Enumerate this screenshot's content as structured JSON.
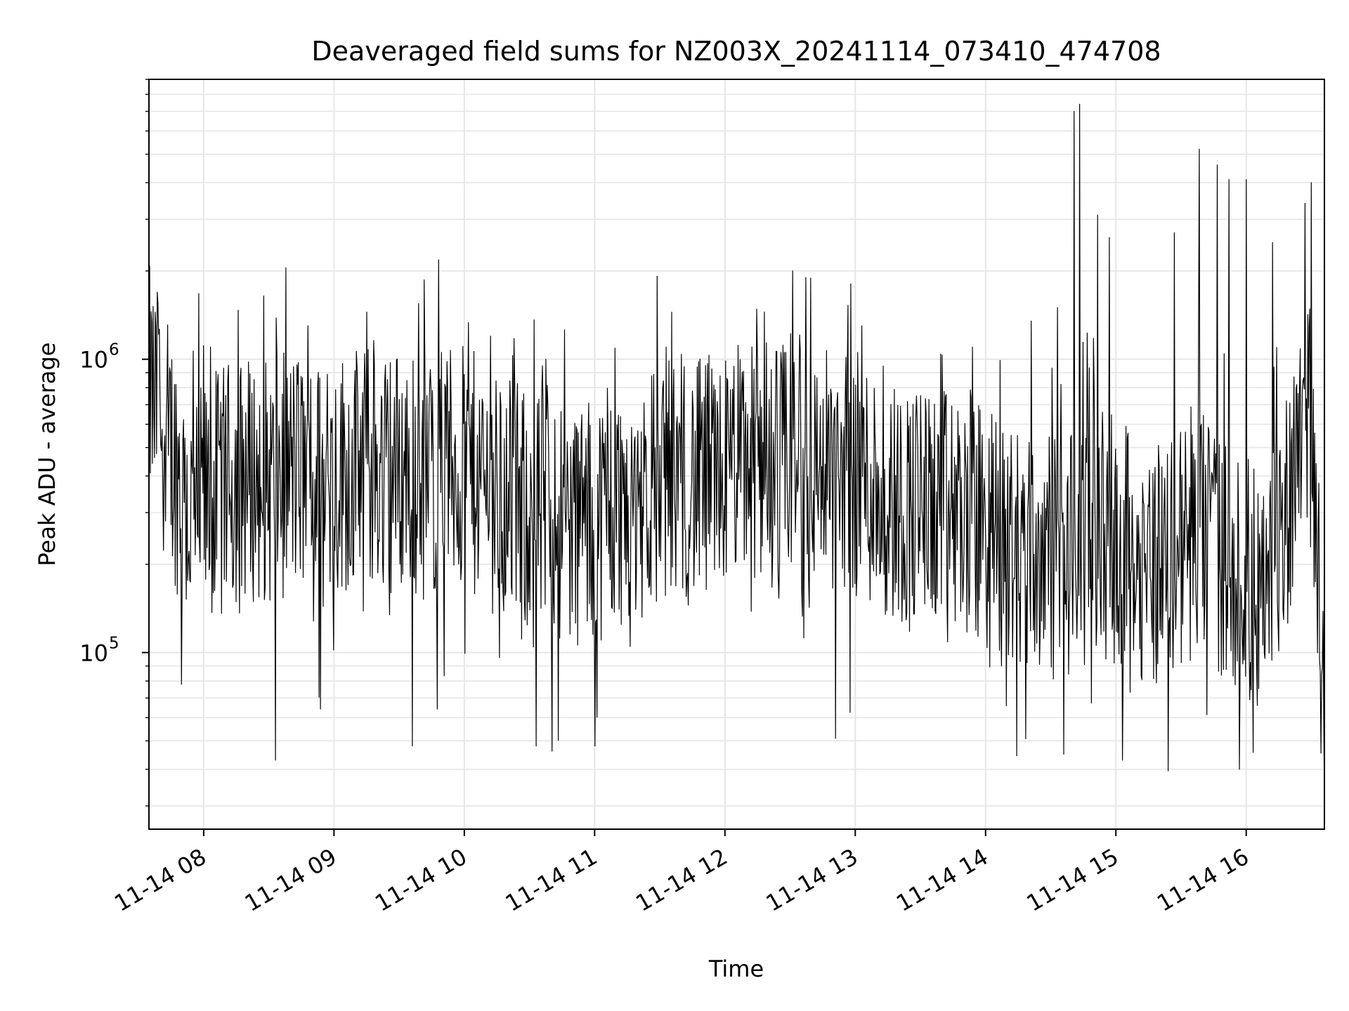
{
  "chart_data": {
    "type": "line",
    "title": "Deaveraged field sums for NZ003X_20241114_073410_474708",
    "xlabel": "Time",
    "ylabel": "Peak ADU - average",
    "x_tick_labels": [
      "11-14 08",
      "11-14 09",
      "11-14 10",
      "11-14 11",
      "11-14 12",
      "11-14 13",
      "11-14 14",
      "11-14 15",
      "11-14 16"
    ],
    "x_ticks_hours": [
      8,
      9,
      10,
      11,
      12,
      13,
      14,
      15,
      16
    ],
    "xlim_hours": [
      7.58,
      16.6
    ],
    "y_scale": "log",
    "ylim": [
      25000,
      9000000
    ],
    "y_tick_labels": [
      {
        "base": "10",
        "exp": "5",
        "value": 100000
      },
      {
        "base": "10",
        "exp": "6",
        "value": 1000000
      }
    ],
    "grid": true,
    "line_color": "#000000",
    "grid_color": "#e6e6e6",
    "series": [
      {
        "x_hours": [
          7.58,
          7.75,
          7.9,
          8.1,
          8.3,
          8.5,
          8.7,
          8.9,
          9.1,
          9.3,
          9.5,
          9.7,
          9.9,
          10.1,
          10.3,
          10.5,
          10.7,
          10.9,
          11.1,
          11.3,
          11.5,
          11.7,
          11.9,
          12.1,
          12.3,
          12.5,
          12.7,
          12.9,
          13.1,
          13.3,
          13.5,
          13.7,
          13.9,
          14.1,
          14.3,
          14.5,
          14.7,
          14.9,
          15.1,
          15.3,
          15.5,
          15.7,
          15.9,
          16.1,
          16.3,
          16.45,
          16.55,
          16.6
        ],
        "typical_level": [
          800000,
          500000,
          280000,
          350000,
          400000,
          380000,
          420000,
          380000,
          420000,
          430000,
          420000,
          400000,
          430000,
          400000,
          330000,
          300000,
          290000,
          270000,
          300000,
          330000,
          380000,
          380000,
          380000,
          450000,
          450000,
          420000,
          420000,
          430000,
          380000,
          330000,
          300000,
          300000,
          280000,
          250000,
          220000,
          210000,
          230000,
          250000,
          230000,
          200000,
          230000,
          250000,
          200000,
          160000,
          280000,
          900000,
          250000,
          35000
        ],
        "peaks": [
          {
            "x": 7.65,
            "y": 1550000
          },
          {
            "x": 8.05,
            "y": 1100000
          },
          {
            "x": 8.55,
            "y": 1050000
          },
          {
            "x": 8.8,
            "y": 1300000
          },
          {
            "x": 9.25,
            "y": 1450000
          },
          {
            "x": 9.65,
            "y": 1550000
          },
          {
            "x": 10.2,
            "y": 1200000
          },
          {
            "x": 10.6,
            "y": 950000
          },
          {
            "x": 11.55,
            "y": 1100000
          },
          {
            "x": 12.3,
            "y": 1450000
          },
          {
            "x": 12.52,
            "y": 2000000
          },
          {
            "x": 12.62,
            "y": 1900000
          },
          {
            "x": 13.05,
            "y": 1300000
          },
          {
            "x": 13.9,
            "y": 1100000
          },
          {
            "x": 14.35,
            "y": 1350000
          },
          {
            "x": 14.55,
            "y": 1500000
          },
          {
            "x": 14.68,
            "y": 7000000
          },
          {
            "x": 14.72,
            "y": 7400000
          },
          {
            "x": 14.86,
            "y": 3100000
          },
          {
            "x": 14.95,
            "y": 2600000
          },
          {
            "x": 15.45,
            "y": 2700000
          },
          {
            "x": 15.64,
            "y": 5200000
          },
          {
            "x": 15.78,
            "y": 4600000
          },
          {
            "x": 15.87,
            "y": 4100000
          },
          {
            "x": 16.0,
            "y": 4100000
          },
          {
            "x": 16.2,
            "y": 2500000
          },
          {
            "x": 16.45,
            "y": 3400000
          },
          {
            "x": 16.5,
            "y": 4000000
          }
        ],
        "troughs": [
          {
            "x": 7.83,
            "y": 78000
          },
          {
            "x": 8.55,
            "y": 43000
          },
          {
            "x": 9.6,
            "y": 48000
          },
          {
            "x": 10.55,
            "y": 48000
          },
          {
            "x": 11.0,
            "y": 48000
          },
          {
            "x": 12.85,
            "y": 51000
          },
          {
            "x": 14.6,
            "y": 45000
          },
          {
            "x": 15.05,
            "y": 43000
          },
          {
            "x": 15.95,
            "y": 40000
          },
          {
            "x": 16.6,
            "y": 32000
          }
        ]
      }
    ]
  }
}
